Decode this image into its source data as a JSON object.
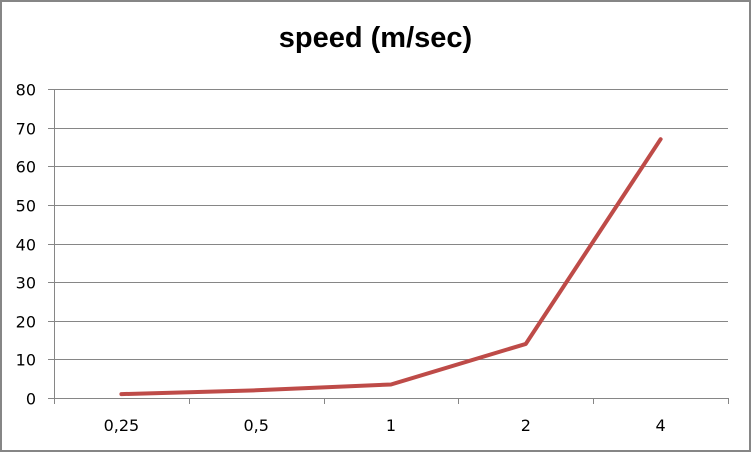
{
  "chart_data": {
    "type": "line",
    "title": "speed (m/sec)",
    "xlabel": "",
    "ylabel": "",
    "categories": [
      "0,25",
      "0,5",
      "1",
      "2",
      "4"
    ],
    "series": [
      {
        "name": "speed (m/sec)",
        "values": [
          1,
          2,
          3.5,
          14,
          67
        ],
        "color": "#BE4B48"
      }
    ],
    "ylim": [
      0,
      80
    ],
    "yticks": [
      0,
      10,
      20,
      30,
      40,
      50,
      60,
      70,
      80
    ],
    "grid": {
      "horizontal": true,
      "vertical": false,
      "color": "#868686"
    },
    "legend": "none"
  }
}
